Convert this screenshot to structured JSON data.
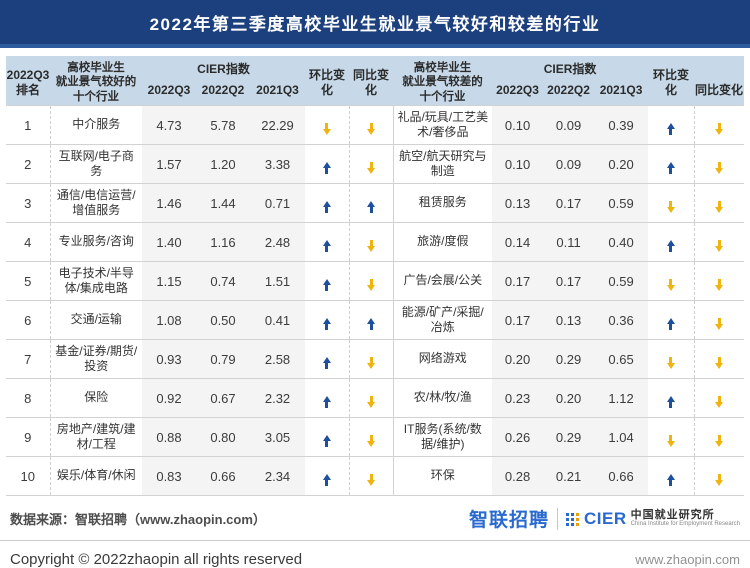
{
  "title": "2022年第三季度高校毕业生就业景气较好和较差的行业",
  "colors": {
    "title_bar_bg": "#1c3f7d",
    "header_bg": "#c7d9e8",
    "numeric_col_bg": "#f4f4f5",
    "arrow_up": "#1d4f9c",
    "arrow_down": "#efb410"
  },
  "table": {
    "rank_header": "2022Q3\n排名",
    "good_header": "高校毕业生\n就业景气较好的\n十个行业",
    "bad_header": "高校毕业生\n就业景气较差的\n十个行业",
    "cier_header": "CIER指数",
    "sub_headers": {
      "q3": "2022Q3",
      "q2": "2022Q2",
      "q1": "2021Q3"
    },
    "mom_header": "环比变化",
    "yoy_header": "同比变化"
  },
  "chart_data": [
    {
      "type": "table",
      "title": "高校毕业生就业景气较好的十个行业",
      "columns": [
        "2022Q3排名",
        "行业",
        "CIER指数 2022Q3",
        "CIER指数 2022Q2",
        "CIER指数 2021Q3",
        "环比变化",
        "同比变化"
      ],
      "rows": [
        [
          1,
          "中介服务",
          "4.73",
          "5.78",
          "22.29",
          "down",
          "down"
        ],
        [
          2,
          "互联网/电子商务",
          "1.57",
          "1.20",
          "3.38",
          "up",
          "down"
        ],
        [
          3,
          "通信/电信运营/增值服务",
          "1.46",
          "1.44",
          "0.71",
          "up",
          "up"
        ],
        [
          4,
          "专业服务/咨询",
          "1.40",
          "1.16",
          "2.48",
          "up",
          "down"
        ],
        [
          5,
          "电子技术/半导体/集成电路",
          "1.15",
          "0.74",
          "1.51",
          "up",
          "down"
        ],
        [
          6,
          "交通/运输",
          "1.08",
          "0.50",
          "0.41",
          "up",
          "up"
        ],
        [
          7,
          "基金/证券/期货/投资",
          "0.93",
          "0.79",
          "2.58",
          "up",
          "down"
        ],
        [
          8,
          "保险",
          "0.92",
          "0.67",
          "2.32",
          "up",
          "down"
        ],
        [
          9,
          "房地产/建筑/建材/工程",
          "0.88",
          "0.80",
          "3.05",
          "up",
          "down"
        ],
        [
          10,
          "娱乐/体育/休闲",
          "0.83",
          "0.66",
          "2.34",
          "up",
          "down"
        ]
      ]
    },
    {
      "type": "table",
      "title": "高校毕业生就业景气较差的十个行业",
      "columns": [
        "2022Q3排名",
        "行业",
        "CIER指数 2022Q3",
        "CIER指数 2022Q2",
        "CIER指数 2021Q3",
        "环比变化",
        "同比变化"
      ],
      "rows": [
        [
          1,
          "礼品/玩具/工艺美术/奢侈品",
          "0.10",
          "0.09",
          "0.39",
          "up",
          "down"
        ],
        [
          2,
          "航空/航天研究与制造",
          "0.10",
          "0.09",
          "0.20",
          "up",
          "down"
        ],
        [
          3,
          "租赁服务",
          "0.13",
          "0.17",
          "0.59",
          "down",
          "down"
        ],
        [
          4,
          "旅游/度假",
          "0.14",
          "0.11",
          "0.40",
          "up",
          "down"
        ],
        [
          5,
          "广告/会展/公关",
          "0.17",
          "0.17",
          "0.59",
          "down",
          "down"
        ],
        [
          6,
          "能源/矿产/采掘/冶炼",
          "0.17",
          "0.13",
          "0.36",
          "up",
          "down"
        ],
        [
          7,
          "网络游戏",
          "0.20",
          "0.29",
          "0.65",
          "down",
          "down"
        ],
        [
          8,
          "农/林/牧/渔",
          "0.23",
          "0.20",
          "1.12",
          "up",
          "down"
        ],
        [
          9,
          "IT服务(系统/数据/维护)",
          "0.26",
          "0.29",
          "1.04",
          "down",
          "down"
        ],
        [
          10,
          "环保",
          "0.28",
          "0.21",
          "0.66",
          "up",
          "down"
        ]
      ]
    }
  ],
  "footer": {
    "source": "数据来源：智联招聘（www.zhaopin.com）",
    "zhaopin_logo": "智联招聘",
    "cier_logo": "CIER",
    "cier_name": "中国就业研究所",
    "cier_sub": "China Institute for Employment Research",
    "copyright": "Copyright © 2022zhaopin all rights reserved",
    "site": "www.zhaopin.com"
  }
}
